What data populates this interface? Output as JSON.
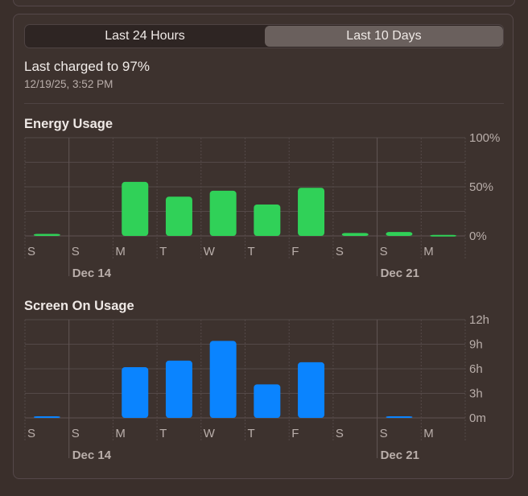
{
  "segmented": {
    "left_label": "Last 24 Hours",
    "right_label": "Last 10 Days",
    "selected": "Last 10 Days"
  },
  "battery": {
    "charged_text": "Last charged to 97%",
    "timestamp": "12/19/25, 3:52 PM"
  },
  "energy": {
    "title": "Energy Usage"
  },
  "screen": {
    "title": "Screen On Usage"
  },
  "colors": {
    "energy_bar": "#30d158",
    "screen_bar": "#0a84ff"
  },
  "chart_data": [
    {
      "type": "bar",
      "title": "Energy Usage",
      "categories": [
        "S",
        "S",
        "M",
        "T",
        "W",
        "T",
        "F",
        "S",
        "S",
        "M"
      ],
      "group_labels": [
        {
          "label": "Dec 14",
          "start_index": 1
        },
        {
          "label": "Dec 21",
          "start_index": 8
        }
      ],
      "values": [
        2,
        0,
        55,
        40,
        46,
        32,
        49,
        3,
        4,
        1
      ],
      "ylim": [
        0,
        100
      ],
      "yticks": [
        "100%",
        "50%",
        "0%"
      ],
      "ytick_values": [
        100,
        50,
        0
      ],
      "grid": true,
      "color": "#30d158"
    },
    {
      "type": "bar",
      "title": "Screen On Usage",
      "categories": [
        "S",
        "S",
        "M",
        "T",
        "W",
        "T",
        "F",
        "S",
        "S",
        "M"
      ],
      "group_labels": [
        {
          "label": "Dec 14",
          "start_index": 1
        },
        {
          "label": "Dec 21",
          "start_index": 8
        }
      ],
      "values": [
        0.2,
        0,
        6.2,
        7.0,
        9.4,
        4.1,
        6.8,
        0,
        0.2,
        0
      ],
      "ylim": [
        0,
        12
      ],
      "yticks": [
        "12h",
        "9h",
        "6h",
        "3h",
        "0m"
      ],
      "ytick_values": [
        12,
        9,
        6,
        3,
        0
      ],
      "grid": true,
      "color": "#0a84ff"
    }
  ]
}
